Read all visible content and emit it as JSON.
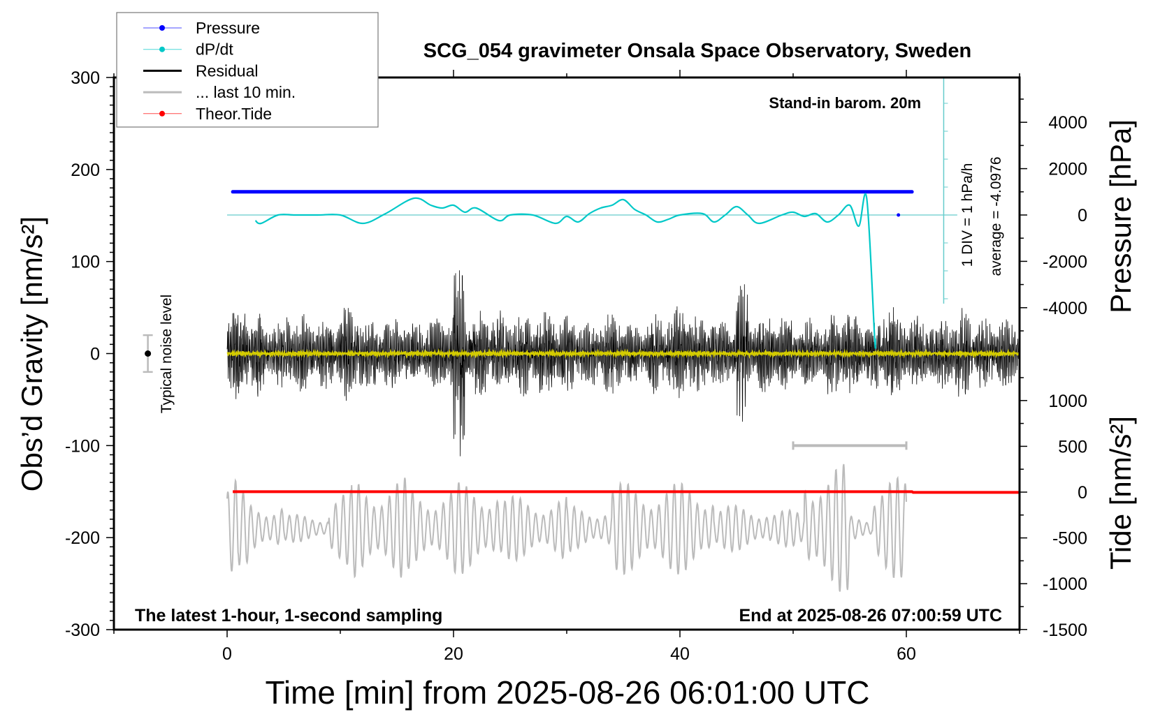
{
  "chart_data": {
    "type": "line",
    "title": "SCG_054 gravimeter Onsala Space Observatory, Sweden",
    "annotation_top_right": "Stand-in barom. 20m",
    "annotation_bottom_left": "The latest 1-hour, 1-second sampling",
    "annotation_bottom_right": "End at 2025-08-26 07:00:59 UTC",
    "noise_label": "Typical noise level",
    "div_label": "1 DIV = 1 hPa/h",
    "average_label": "average = -4.0976",
    "xlabel": "Time [min] from 2025-08-26 06:01:00 UTC",
    "ylabel_left": "Obs’d Gravity [nm/s²]",
    "ylabel_right_top": "Pressure [hPa]",
    "ylabel_right_bottom": "Tide [nm/s²]",
    "xlim": [
      -10,
      70
    ],
    "ylim_left": [
      -300,
      300
    ],
    "ylim_pressure": [
      -4000,
      4000
    ],
    "ylim_tide": [
      -1500,
      1000
    ],
    "x_ticks": [
      "0",
      "20",
      "40",
      "60"
    ],
    "y_ticks_left": [
      "300",
      "200",
      "100",
      "0",
      "-100",
      "-200",
      "-300"
    ],
    "y_ticks_pressure": [
      "4000",
      "2000",
      "0",
      "-2000",
      "-4000"
    ],
    "y_ticks_tide": [
      "1000",
      "500",
      "0",
      "-500",
      "-1000",
      "-1500"
    ],
    "legend": {
      "placement": "top-left",
      "entries": [
        {
          "label": "Pressure",
          "color": "#0000ff",
          "marker": "dot"
        },
        {
          "label": "dP/dt",
          "color": "#00c8c8",
          "marker": "dot"
        },
        {
          "label": "Residual",
          "color": "#000000",
          "marker": "line"
        },
        {
          "label": "... last 10 min.",
          "color": "#bbbbbb",
          "marker": "line"
        },
        {
          "label": "Theor.Tide",
          "color": "#ff0000",
          "marker": "dot"
        }
      ]
    },
    "series": [
      {
        "name": "Pressure",
        "color": "#0000ff",
        "axis": "pressure",
        "x_range": [
          0.5,
          60.5
        ],
        "value": 1000
      },
      {
        "name": "dP/dt",
        "color": "#00c8c8",
        "units": "hPa/h",
        "x": [
          2.5,
          3,
          4.5,
          6,
          8,
          10,
          12,
          14,
          16.5,
          18,
          19,
          20,
          21,
          22,
          24,
          25,
          27,
          29,
          30,
          31,
          32,
          33,
          34,
          35,
          36,
          37,
          38,
          39,
          40,
          42,
          43,
          44,
          45,
          46,
          47,
          49,
          50,
          51,
          52,
          53,
          54,
          55,
          55.8,
          56.5,
          57.2,
          57.25
        ],
        "values": [
          -0.2,
          -0.3,
          0,
          0,
          0,
          0,
          -0.3,
          0.05,
          0.6,
          0.35,
          0.25,
          0.35,
          0.1,
          0.25,
          -0.2,
          0,
          0,
          -0.3,
          -0.05,
          -0.25,
          0.05,
          0.25,
          0.35,
          0.55,
          0.2,
          0,
          -0.25,
          -0.15,
          0,
          0.05,
          -0.25,
          0,
          0.3,
          0,
          -0.3,
          0,
          0.1,
          -0.05,
          0.05,
          -0.25,
          0,
          0.35,
          -0.4,
          0.6,
          -4.4,
          -4.4
        ]
      },
      {
        "name": "Residual",
        "color": "#000000",
        "axis": "gravity",
        "sampling": "1 s",
        "envelope_per_minute": [
          60,
          55,
          55,
          40,
          40,
          45,
          45,
          40,
          40,
          40,
          55,
          55,
          40,
          40,
          45,
          45,
          40,
          40,
          40,
          45,
          120,
          55,
          50,
          50,
          50,
          50,
          50,
          50,
          50,
          45,
          45,
          40,
          40,
          50,
          50,
          35,
          35,
          45,
          45,
          55,
          55,
          45,
          45,
          40,
          40,
          80,
          45,
          45,
          45,
          45,
          35,
          40,
          40,
          50,
          50,
          50,
          40,
          40,
          60,
          45,
          45,
          40,
          40,
          50,
          50,
          50,
          40,
          40,
          40,
          40
        ]
      },
      {
        "name": "Residual smoothed",
        "color": "#d4cc00",
        "axis": "gravity",
        "value": 0
      },
      {
        "name": "... last 10 min.",
        "color": "#bbbbbb",
        "axis": "gravity",
        "offset": -190,
        "envelope_per_minute": [
          55,
          40,
          30,
          30,
          30,
          15,
          15,
          15,
          15,
          40,
          40,
          55,
          55,
          55,
          55,
          55,
          45,
          45,
          45,
          45,
          50,
          50,
          50,
          50,
          35,
          35,
          35,
          35,
          35,
          35,
          25,
          25,
          25,
          25,
          50,
          50,
          50,
          50,
          50,
          50,
          50,
          50,
          50,
          25,
          25,
          25,
          25,
          25,
          20,
          20,
          20,
          70,
          75,
          70,
          70,
          15,
          15,
          55,
          55,
          55
        ]
      },
      {
        "name": "Theor.Tide",
        "color": "#ff0000",
        "axis": "tide",
        "x": [
          0.5,
          60.5,
          60.6,
          70
        ],
        "values": [
          5,
          5,
          -3,
          -3
        ]
      }
    ],
    "noise_level": {
      "x": -7,
      "center": 0,
      "range": [
        -20,
        20
      ]
    },
    "last_10_min_bar": {
      "x_range": [
        50,
        60
      ],
      "value": -100
    },
    "grid": false
  }
}
